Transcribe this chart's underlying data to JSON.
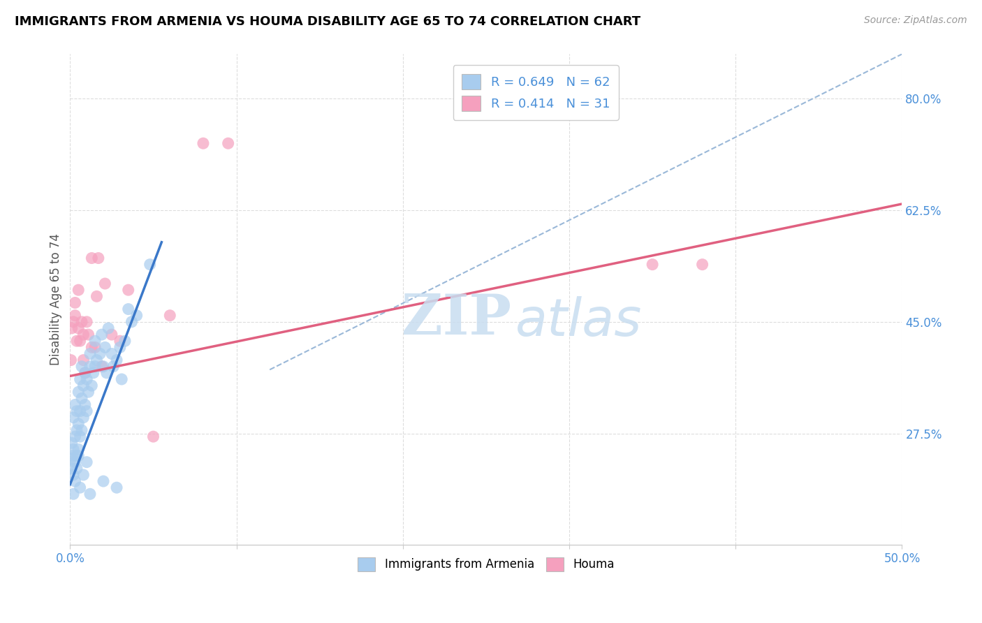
{
  "title": "IMMIGRANTS FROM ARMENIA VS HOUMA DISABILITY AGE 65 TO 74 CORRELATION CHART",
  "source": "Source: ZipAtlas.com",
  "ylabel": "Disability Age 65 to 74",
  "xlim": [
    0.0,
    0.5
  ],
  "ylim": [
    0.1,
    0.87
  ],
  "x_ticks": [
    0.0,
    0.1,
    0.2,
    0.3,
    0.4,
    0.5
  ],
  "y_ticks": [
    0.275,
    0.45,
    0.625,
    0.8
  ],
  "y_tick_labels": [
    "27.5%",
    "45.0%",
    "62.5%",
    "80.0%"
  ],
  "blue_marker_color": "#A8CCEE",
  "pink_marker_color": "#F5A0BE",
  "trend_blue_color": "#3A78C9",
  "trend_pink_color": "#E06080",
  "trend_dash_color": "#9AB8D8",
  "legend_blue_label": "R = 0.649   N = 62",
  "legend_pink_label": "R = 0.414   N = 31",
  "legend_bottom_blue": "Immigrants from Armenia",
  "legend_bottom_pink": "Houma",
  "watermark_zip": "ZIP",
  "watermark_atlas": "atlas",
  "blue_line_x0": 0.0,
  "blue_line_y0": 0.195,
  "blue_line_x1": 0.055,
  "blue_line_y1": 0.575,
  "pink_line_x0": 0.0,
  "pink_line_y0": 0.365,
  "pink_line_x1": 0.5,
  "pink_line_y1": 0.635,
  "dash_line_x0": 0.12,
  "dash_line_y0": 0.375,
  "dash_line_x1": 0.5,
  "dash_line_y1": 0.87,
  "blue_scatter_x": [
    0.0005,
    0.001,
    0.001,
    0.0015,
    0.002,
    0.002,
    0.002,
    0.003,
    0.003,
    0.003,
    0.004,
    0.004,
    0.004,
    0.005,
    0.005,
    0.005,
    0.006,
    0.006,
    0.006,
    0.007,
    0.007,
    0.007,
    0.008,
    0.008,
    0.009,
    0.009,
    0.01,
    0.01,
    0.011,
    0.012,
    0.012,
    0.013,
    0.014,
    0.015,
    0.015,
    0.016,
    0.018,
    0.019,
    0.02,
    0.021,
    0.022,
    0.023,
    0.025,
    0.026,
    0.028,
    0.03,
    0.031,
    0.033,
    0.035,
    0.037,
    0.002,
    0.003,
    0.004,
    0.005,
    0.006,
    0.008,
    0.01,
    0.012,
    0.02,
    0.028,
    0.04,
    0.048
  ],
  "blue_scatter_y": [
    0.235,
    0.22,
    0.26,
    0.24,
    0.21,
    0.25,
    0.3,
    0.23,
    0.27,
    0.32,
    0.24,
    0.28,
    0.31,
    0.25,
    0.29,
    0.34,
    0.27,
    0.31,
    0.36,
    0.28,
    0.33,
    0.38,
    0.3,
    0.35,
    0.32,
    0.37,
    0.31,
    0.36,
    0.34,
    0.38,
    0.4,
    0.35,
    0.37,
    0.38,
    0.42,
    0.39,
    0.4,
    0.43,
    0.38,
    0.41,
    0.37,
    0.44,
    0.4,
    0.38,
    0.39,
    0.41,
    0.36,
    0.42,
    0.47,
    0.45,
    0.18,
    0.2,
    0.22,
    0.24,
    0.19,
    0.21,
    0.23,
    0.18,
    0.2,
    0.19,
    0.46,
    0.54
  ],
  "pink_scatter_x": [
    0.0005,
    0.001,
    0.002,
    0.003,
    0.004,
    0.005,
    0.006,
    0.007,
    0.008,
    0.009,
    0.01,
    0.011,
    0.013,
    0.015,
    0.017,
    0.019,
    0.021,
    0.025,
    0.03,
    0.035,
    0.05,
    0.06,
    0.08,
    0.095,
    0.35,
    0.38,
    0.003,
    0.005,
    0.008,
    0.013,
    0.016
  ],
  "pink_scatter_y": [
    0.39,
    0.44,
    0.45,
    0.46,
    0.42,
    0.44,
    0.42,
    0.45,
    0.43,
    0.37,
    0.45,
    0.43,
    0.41,
    0.41,
    0.55,
    0.38,
    0.51,
    0.43,
    0.42,
    0.5,
    0.27,
    0.46,
    0.73,
    0.73,
    0.54,
    0.54,
    0.48,
    0.5,
    0.39,
    0.55,
    0.49
  ]
}
